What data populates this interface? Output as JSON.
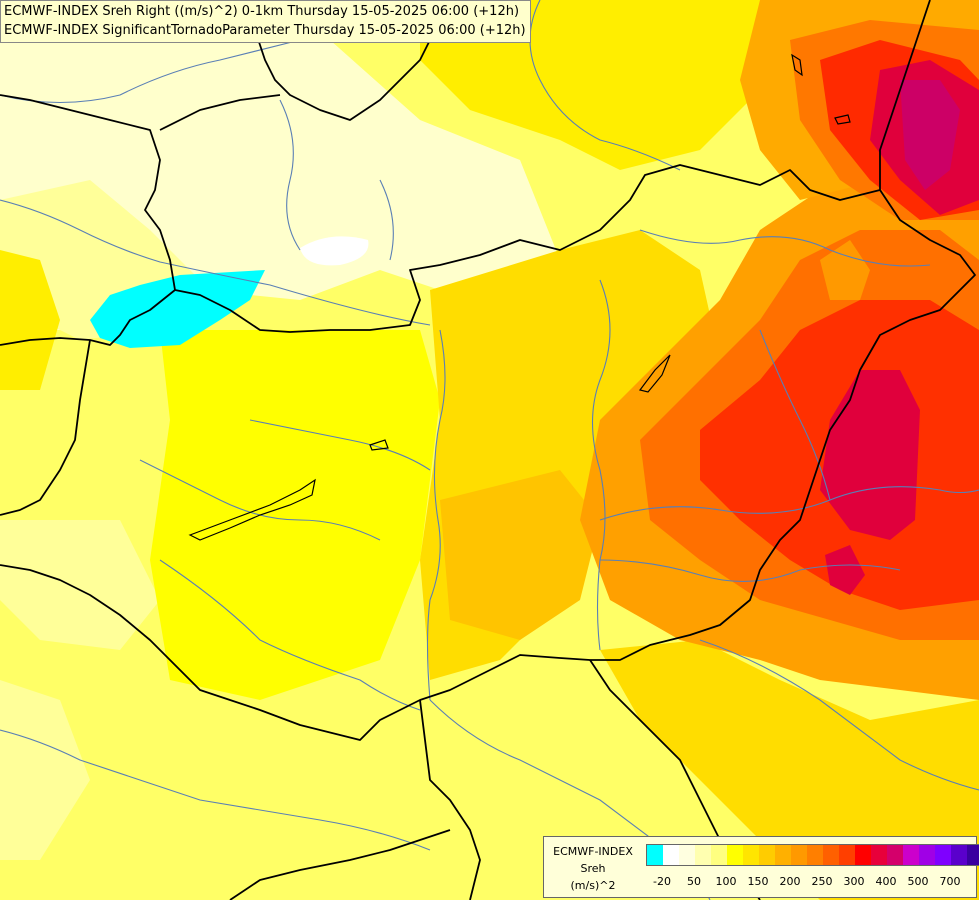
{
  "title": {
    "line1": "ECMWF-INDEX Sreh Right ((m/s)^2) 0-1km Thursday 15-05-2025 06:00 (+12h)",
    "line2": "ECMWF-INDEX SignificantTornadoParameter Thursday 15-05-2025 06:00 (+12h)"
  },
  "legend": {
    "model": "ECMWF-INDEX",
    "variable": "Sreh",
    "unit": "(m/s)^2",
    "colors": [
      "#00ffff",
      "#ffffff",
      "#ffffe0",
      "#ffffb0",
      "#ffff80",
      "#ffff00",
      "#ffe500",
      "#ffcc00",
      "#ffb000",
      "#ff9900",
      "#ff7f00",
      "#ff6000",
      "#ff3f00",
      "#ff0000",
      "#e8003a",
      "#d4006b",
      "#cc00cc",
      "#a000e6",
      "#7f00ff",
      "#5a00cc",
      "#3a00a0",
      "#000080"
    ],
    "ticks": [
      "-20",
      "50",
      "100",
      "150",
      "200",
      "250",
      "300",
      "400",
      "500",
      "700"
    ]
  },
  "field": {
    "palette": {
      "lowest": "#00ffff",
      "pale": "#ffffcc",
      "light": "#ffff99",
      "yellow": "#ffff00",
      "gold": "#ffdd00",
      "amber": "#ffb800",
      "orange": "#ff9900",
      "dark_orange": "#ff6a00",
      "red": "#ff2a00",
      "crimson": "#e0004a",
      "magenta": "#d4006b"
    }
  }
}
